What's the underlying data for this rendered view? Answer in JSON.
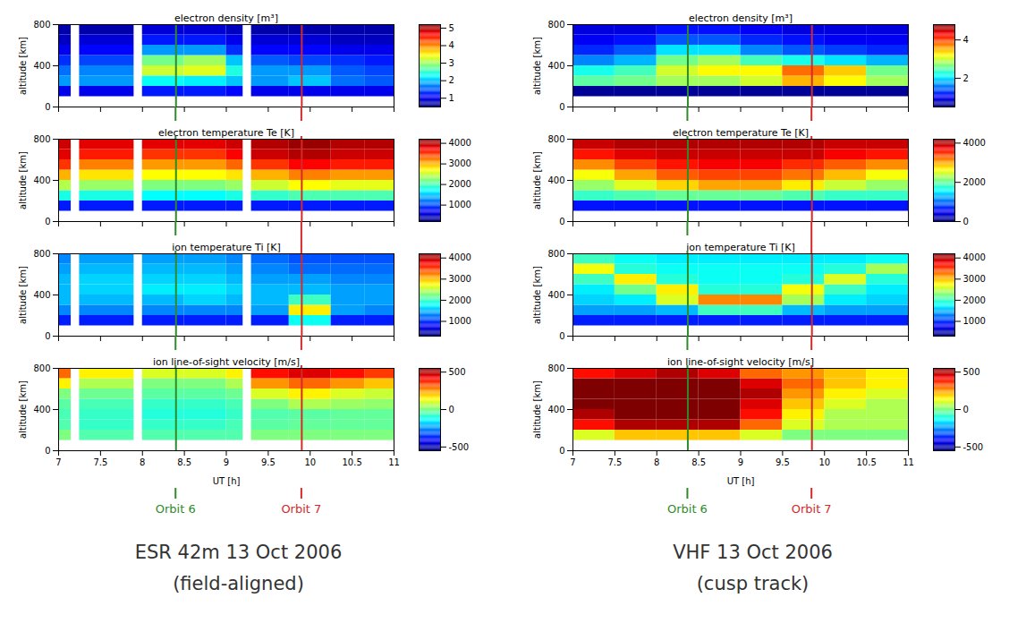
{
  "chart_data": [
    {
      "type": "heatmap",
      "title": "electron density [m³]",
      "ylabel": "altitude [km]",
      "xlim": [
        7,
        11
      ],
      "xticks": [
        7,
        7.5,
        8,
        8.5,
        9,
        9.5,
        10,
        10.5,
        11
      ],
      "ylim": [
        0,
        800
      ],
      "yticks": [
        0,
        400,
        800
      ],
      "tick_labels": "y",
      "x_edges": [
        7,
        7.15,
        7.25,
        7.9,
        8.0,
        8.5,
        9.0,
        9.2,
        9.3,
        9.75,
        10.25,
        10.65,
        11
      ],
      "y_edges": [
        100,
        200,
        300,
        400,
        500,
        600,
        700,
        800
      ],
      "cells": [
        [
          1.0,
          null,
          1.0,
          null,
          1.2,
          1.2,
          1.1,
          null,
          1.0,
          1.0,
          1.0,
          1.0
        ],
        [
          1.8,
          null,
          1.8,
          null,
          2.3,
          2.2,
          2.0,
          null,
          1.8,
          2.0,
          1.6,
          1.5
        ],
        [
          1.6,
          null,
          1.7,
          null,
          3.2,
          3.3,
          2.4,
          null,
          1.8,
          1.8,
          1.5,
          1.4
        ],
        [
          1.3,
          null,
          1.4,
          null,
          2.8,
          3.0,
          2.0,
          null,
          1.5,
          1.4,
          1.3,
          1.2
        ],
        [
          1.0,
          null,
          1.1,
          null,
          1.8,
          1.8,
          1.3,
          null,
          1.1,
          1.1,
          1.0,
          1.0
        ],
        [
          0.8,
          null,
          0.9,
          null,
          1.2,
          1.2,
          1.0,
          null,
          0.9,
          0.9,
          0.8,
          0.8
        ],
        [
          0.7,
          null,
          0.7,
          null,
          0.9,
          0.9,
          0.8,
          null,
          0.7,
          0.7,
          0.7,
          0.7
        ]
      ],
      "colorbar": {
        "range": [
          0.5,
          5.2
        ],
        "ticks": [
          1,
          2,
          3,
          4,
          5
        ]
      }
    },
    {
      "type": "heatmap",
      "title": "electron temperature Te [K]",
      "ylabel": "altitude [km]",
      "xlim": [
        7,
        11
      ],
      "xticks": [
        7,
        7.5,
        8,
        8.5,
        9,
        9.5,
        10,
        10.5,
        11
      ],
      "ylim": [
        0,
        800
      ],
      "yticks": [
        0,
        400,
        800
      ],
      "tick_labels": "y",
      "x_edges": [
        7,
        7.15,
        7.25,
        7.9,
        8.0,
        8.5,
        9.0,
        9.2,
        9.3,
        9.75,
        10.25,
        10.65,
        11
      ],
      "y_edges": [
        100,
        200,
        300,
        400,
        500,
        600,
        700,
        800
      ],
      "cells": [
        [
          800,
          null,
          800,
          null,
          800,
          800,
          800,
          null,
          800,
          800,
          800,
          800
        ],
        [
          1800,
          null,
          1800,
          null,
          1700,
          1700,
          1800,
          null,
          1900,
          2000,
          2000,
          2000
        ],
        [
          2400,
          null,
          2300,
          null,
          2200,
          2200,
          2300,
          null,
          2500,
          2700,
          2600,
          2600
        ],
        [
          3000,
          null,
          2800,
          null,
          2700,
          2700,
          2800,
          null,
          3000,
          3200,
          3100,
          3100
        ],
        [
          3500,
          null,
          3200,
          null,
          3100,
          3100,
          3300,
          null,
          3500,
          3700,
          3600,
          3600
        ],
        [
          3800,
          null,
          3600,
          null,
          3500,
          3500,
          3700,
          null,
          3900,
          4000,
          3900,
          3900
        ],
        [
          3900,
          null,
          3800,
          null,
          3800,
          3800,
          3900,
          null,
          4000,
          4100,
          4000,
          4000
        ]
      ],
      "colorbar": {
        "range": [
          200,
          4200
        ],
        "ticks": [
          1000,
          2000,
          3000,
          4000
        ]
      }
    },
    {
      "type": "heatmap",
      "title": "ion temperature Ti [K]",
      "ylabel": "altitude [km]",
      "xlim": [
        7,
        11
      ],
      "xticks": [
        7,
        7.5,
        8,
        8.5,
        9,
        9.5,
        10,
        10.5,
        11
      ],
      "ylim": [
        0,
        800
      ],
      "yticks": [
        0,
        400,
        800
      ],
      "tick_labels": "y",
      "x_edges": [
        7,
        7.15,
        7.25,
        7.9,
        8.0,
        8.5,
        9.0,
        9.2,
        9.3,
        9.75,
        10.25,
        10.65,
        11
      ],
      "y_edges": [
        100,
        200,
        300,
        400,
        500,
        600,
        700,
        800
      ],
      "cells": [
        [
          900,
          null,
          900,
          null,
          900,
          900,
          900,
          null,
          900,
          1800,
          900,
          900
        ],
        [
          1300,
          null,
          1300,
          null,
          1300,
          1300,
          1300,
          null,
          1400,
          2800,
          1400,
          1300
        ],
        [
          1500,
          null,
          1500,
          null,
          1500,
          1600,
          1500,
          null,
          1500,
          2000,
          1400,
          1400
        ],
        [
          1500,
          null,
          1600,
          null,
          1700,
          1700,
          1600,
          null,
          1500,
          1500,
          1400,
          1400
        ],
        [
          1500,
          null,
          1600,
          null,
          1600,
          1600,
          1500,
          null,
          1400,
          1400,
          1300,
          1300
        ],
        [
          1400,
          null,
          1500,
          null,
          1500,
          1500,
          1400,
          null,
          1300,
          1200,
          1200,
          1200
        ],
        [
          1300,
          null,
          1400,
          null,
          1400,
          1400,
          1300,
          null,
          1200,
          1100,
          1100,
          1100
        ]
      ],
      "colorbar": {
        "range": [
          300,
          4200
        ],
        "ticks": [
          1000,
          2000,
          3000,
          4000
        ]
      }
    },
    {
      "type": "heatmap",
      "title": "ion line-of-sight velocity [m/s]",
      "ylabel": "altitude [km]",
      "xlabel": "UT [h]",
      "xlim": [
        7,
        11
      ],
      "xticks": [
        7,
        7.5,
        8,
        8.5,
        9,
        9.5,
        10,
        10.5,
        11
      ],
      "ylim": [
        0,
        800
      ],
      "yticks": [
        0,
        400,
        800
      ],
      "tick_labels": true,
      "x_edges": [
        7,
        7.15,
        7.25,
        7.9,
        8.0,
        8.5,
        9.0,
        9.2,
        9.3,
        9.75,
        10.25,
        10.65,
        11
      ],
      "y_edges": [
        100,
        200,
        300,
        400,
        500,
        600,
        700,
        800
      ],
      "cells": [
        [
          0,
          null,
          -50,
          null,
          -50,
          -50,
          -50,
          null,
          0,
          0,
          0,
          0
        ],
        [
          -50,
          null,
          -80,
          null,
          -80,
          -80,
          -60,
          null,
          -40,
          -30,
          -30,
          -30
        ],
        [
          -60,
          null,
          -80,
          null,
          -100,
          -100,
          -80,
          null,
          -50,
          -40,
          -30,
          -30
        ],
        [
          -40,
          null,
          -60,
          null,
          -80,
          -80,
          -60,
          null,
          0,
          50,
          30,
          20
        ],
        [
          0,
          null,
          -20,
          null,
          -40,
          -40,
          -20,
          null,
          100,
          150,
          100,
          80
        ],
        [
          150,
          null,
          50,
          null,
          0,
          0,
          50,
          null,
          250,
          300,
          250,
          200
        ],
        [
          300,
          null,
          150,
          null,
          100,
          100,
          150,
          null,
          400,
          450,
          400,
          350
        ]
      ],
      "colorbar": {
        "range": [
          -550,
          550
        ],
        "ticks": [
          -500,
          0,
          500
        ]
      }
    },
    {
      "type": "heatmap",
      "title": "electron density [m³]",
      "ylabel": "altitude [km]",
      "xlim": [
        7,
        11
      ],
      "xticks": [
        7,
        7.5,
        8,
        8.5,
        9,
        9.5,
        10,
        10.5,
        11
      ],
      "ylim": [
        0,
        800
      ],
      "yticks": [
        0,
        400,
        800
      ],
      "tick_labels": "y",
      "x_edges": [
        7,
        7.5,
        8,
        8.5,
        9,
        9.5,
        10,
        10.5,
        11
      ],
      "y_edges": [
        100,
        200,
        300,
        400,
        500,
        600,
        700,
        800
      ],
      "cells": [
        [
          0.6,
          0.6,
          0.6,
          0.6,
          0.6,
          0.6,
          0.6,
          0.6
        ],
        [
          2.5,
          2.6,
          2.8,
          2.8,
          3.0,
          3.5,
          3.2,
          2.8
        ],
        [
          2.2,
          2.4,
          3.0,
          3.2,
          3.2,
          3.8,
          3.4,
          2.6
        ],
        [
          1.6,
          1.8,
          2.6,
          2.8,
          2.4,
          2.2,
          2.0,
          1.8
        ],
        [
          1.2,
          1.4,
          2.0,
          2.0,
          1.6,
          1.4,
          1.3,
          1.2
        ],
        [
          1.0,
          1.1,
          1.4,
          1.4,
          1.2,
          1.1,
          1.0,
          1.0
        ],
        [
          0.9,
          0.9,
          1.1,
          1.1,
          1.0,
          0.9,
          0.9,
          0.9
        ]
      ],
      "colorbar": {
        "range": [
          0.5,
          4.8
        ],
        "ticks": [
          2,
          4
        ]
      }
    },
    {
      "type": "heatmap",
      "title": "electron temperature Te [K]",
      "ylabel": "altitude [km]",
      "xlim": [
        7,
        11
      ],
      "xticks": [
        7,
        7.5,
        8,
        8.5,
        9,
        9.5,
        10,
        10.5,
        11
      ],
      "ylim": [
        0,
        800
      ],
      "yticks": [
        0,
        400,
        800
      ],
      "tick_labels": "y",
      "x_edges": [
        7,
        7.5,
        8,
        8.5,
        9,
        9.5,
        10,
        10.5,
        11
      ],
      "y_edges": [
        100,
        200,
        300,
        400,
        500,
        600,
        700,
        800
      ],
      "cells": [
        [
          600,
          600,
          600,
          600,
          600,
          600,
          600,
          600
        ],
        [
          1800,
          1900,
          2000,
          2000,
          2000,
          1900,
          1800,
          1800
        ],
        [
          2200,
          2500,
          2800,
          3000,
          3000,
          2700,
          2400,
          2200
        ],
        [
          2600,
          3000,
          3300,
          3400,
          3400,
          3200,
          2900,
          2600
        ],
        [
          3100,
          3400,
          3600,
          3700,
          3700,
          3500,
          3300,
          3100
        ],
        [
          3600,
          3800,
          3900,
          3900,
          3900,
          3900,
          3700,
          3600
        ],
        [
          3900,
          4000,
          4000,
          4000,
          4000,
          4000,
          3900,
          3900
        ]
      ],
      "colorbar": {
        "range": [
          0,
          4200
        ],
        "ticks": [
          0,
          2000,
          4000
        ]
      }
    },
    {
      "type": "heatmap",
      "title": "ion temperature Ti [K]",
      "ylabel": "altitude [km]",
      "xlim": [
        7,
        11
      ],
      "xticks": [
        7,
        7.5,
        8,
        8.5,
        9,
        9.5,
        10,
        10.5,
        11
      ],
      "ylim": [
        0,
        800
      ],
      "yticks": [
        0,
        400,
        800
      ],
      "tick_labels": "y",
      "x_edges": [
        7,
        7.5,
        8,
        8.5,
        9,
        9.5,
        10,
        10.5,
        11
      ],
      "y_edges": [
        100,
        200,
        300,
        400,
        500,
        600,
        700,
        800
      ],
      "cells": [
        [
          900,
          900,
          900,
          900,
          900,
          900,
          900,
          900
        ],
        [
          1400,
          1400,
          1500,
          2000,
          2000,
          1500,
          1400,
          1400
        ],
        [
          1600,
          1700,
          2600,
          3200,
          3200,
          2400,
          1700,
          1600
        ],
        [
          1700,
          2200,
          2800,
          1900,
          1900,
          2700,
          2000,
          1700
        ],
        [
          2000,
          2800,
          1900,
          1800,
          1800,
          1900,
          2600,
          1900
        ],
        [
          2700,
          1900,
          1800,
          1800,
          1800,
          1800,
          1900,
          2400
        ],
        [
          2000,
          1800,
          1700,
          1700,
          1700,
          1700,
          1700,
          1800
        ]
      ],
      "colorbar": {
        "range": [
          300,
          4200
        ],
        "ticks": [
          1000,
          2000,
          3000,
          4000
        ]
      }
    },
    {
      "type": "heatmap",
      "title": "ion line-of-sight velocity [m/s]",
      "ylabel": "altitude [km]",
      "xlabel": "UT [h]",
      "xlim": [
        7,
        11
      ],
      "xticks": [
        7,
        7.5,
        8,
        8.5,
        9,
        9.5,
        10,
        10.5,
        11
      ],
      "ylim": [
        0,
        800
      ],
      "yticks": [
        0,
        400,
        800
      ],
      "tick_labels": true,
      "x_edges": [
        7,
        7.5,
        8,
        8.5,
        9,
        9.5,
        10,
        10.5,
        11
      ],
      "y_edges": [
        100,
        200,
        300,
        400,
        500,
        600,
        700,
        800
      ],
      "cells": [
        [
          100,
          200,
          200,
          200,
          100,
          0,
          0,
          0
        ],
        [
          400,
          500,
          500,
          500,
          300,
          100,
          50,
          50
        ],
        [
          500,
          550,
          550,
          550,
          400,
          150,
          50,
          50
        ],
        [
          550,
          550,
          550,
          550,
          450,
          200,
          100,
          50
        ],
        [
          550,
          550,
          550,
          550,
          500,
          250,
          150,
          100
        ],
        [
          550,
          550,
          550,
          550,
          450,
          300,
          200,
          150
        ],
        [
          400,
          450,
          500,
          450,
          300,
          250,
          200,
          150
        ]
      ],
      "colorbar": {
        "range": [
          -550,
          550
        ],
        "ticks": [
          -500,
          0,
          500
        ]
      }
    }
  ],
  "columns": [
    {
      "caption": [
        "ESR 42m 13 Oct 2006",
        "(field-aligned)"
      ],
      "annotations": [
        {
          "label": "Orbit 6",
          "x": 8.4,
          "color": "#2f8a2a"
        },
        {
          "label": "Orbit 7",
          "x": 9.9,
          "color": "#d42a2a"
        }
      ]
    },
    {
      "caption": [
        "VHF 13 Oct 2006",
        "(cusp track)"
      ],
      "annotations": [
        {
          "label": "Orbit 6",
          "x": 8.37,
          "color": "#2f8a2a"
        },
        {
          "label": "Orbit 7",
          "x": 9.85,
          "color": "#d42a2a"
        }
      ]
    }
  ]
}
